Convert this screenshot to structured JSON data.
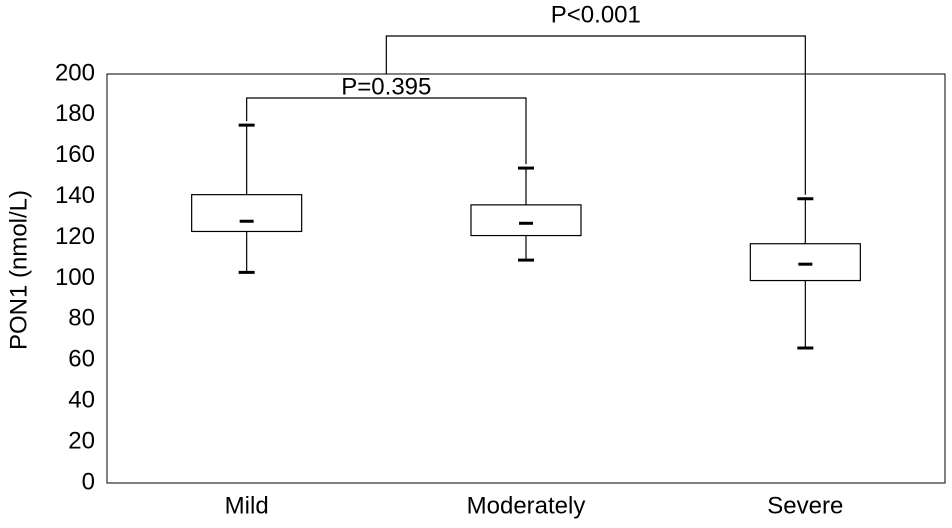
{
  "chart_data": {
    "type": "box",
    "y_label": "PON1 (nmol/L)",
    "categories": [
      "Mild",
      "Moderately",
      "Severe"
    ],
    "boxes": [
      {
        "min": 103,
        "q1": 123,
        "median": 128,
        "q3": 141,
        "max": 175
      },
      {
        "min": 109,
        "q1": 121,
        "median": 127,
        "q3": 136,
        "max": 154
      },
      {
        "min": 66,
        "q1": 99,
        "median": 107,
        "q3": 117,
        "max": 139
      }
    ],
    "color": "#000000",
    "ylim": [
      0,
      200
    ],
    "yticks": [
      0,
      20,
      40,
      60,
      80,
      100,
      120,
      140,
      160,
      180,
      200
    ],
    "grid": false,
    "annotations": [
      "P=0.395",
      "P<0.001"
    ]
  }
}
